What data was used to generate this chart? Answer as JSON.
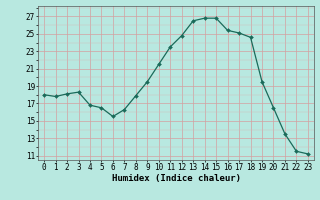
{
  "x": [
    0,
    1,
    2,
    3,
    4,
    5,
    6,
    7,
    8,
    9,
    10,
    11,
    12,
    13,
    14,
    15,
    16,
    17,
    18,
    19,
    20,
    21,
    22,
    23
  ],
  "y": [
    18.0,
    17.8,
    18.1,
    18.3,
    16.8,
    16.5,
    15.5,
    16.3,
    17.9,
    19.5,
    21.5,
    23.5,
    24.8,
    26.5,
    26.8,
    26.8,
    25.4,
    25.1,
    24.6,
    19.5,
    16.5,
    13.5,
    11.5,
    11.2
  ],
  "line_color": "#1a6b5a",
  "markersize": 2.0,
  "linewidth": 0.9,
  "background_color": "#b8e8e0",
  "grid_color_major": "#d0a0a0",
  "grid_color_minor": "#d8c0c0",
  "xlabel": "Humidex (Indice chaleur)",
  "ylabel_ticks": [
    11,
    13,
    15,
    17,
    19,
    21,
    23,
    25,
    27
  ],
  "xlim": [
    -0.5,
    23.5
  ],
  "ylim": [
    10.5,
    28.2
  ],
  "tick_fontsize": 5.5,
  "xlabel_fontsize": 6.5
}
